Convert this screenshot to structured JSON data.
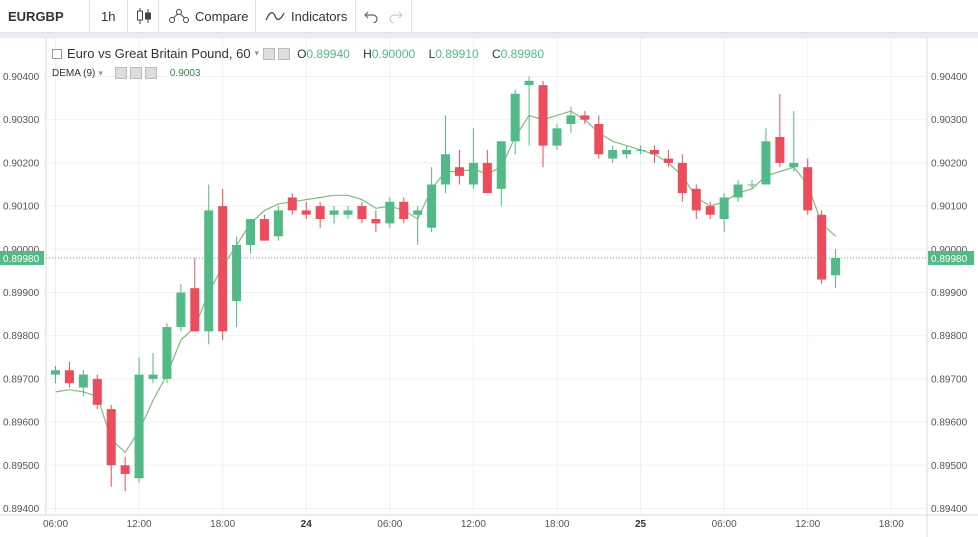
{
  "toolbar": {
    "symbol": "EURGBP",
    "interval": "1h",
    "compare_label": "Compare",
    "indicators_label": "Indicators"
  },
  "legend": {
    "title": "Euro vs Great Britain Pound, 60",
    "o_label": "O",
    "o_value": "0.89940",
    "h_label": "H",
    "h_value": "0.90000",
    "l_label": "L",
    "l_value": "0.89910",
    "c_label": "C",
    "c_value": "0.89980",
    "indicator_name": "DEMA (9)",
    "indicator_value": "0.9003"
  },
  "price_tags": {
    "left": "0.89980",
    "right": "0.89980"
  },
  "colors": {
    "up": "#53b987",
    "down": "#eb4d5c",
    "dema": "#7ac17a",
    "grid": "#eef0f3",
    "axis_text": "#555555"
  },
  "chart_data": {
    "type": "candlestick",
    "title": "Euro vs Great Britain Pound, 60",
    "ylim": [
      0.8938,
      0.9047
    ],
    "y_ticks": [
      "0.89400",
      "0.89500",
      "0.89600",
      "0.89700",
      "0.89800",
      "0.89900",
      "0.90000",
      "0.90100",
      "0.90200",
      "0.90300",
      "0.90400"
    ],
    "x_ticks": [
      {
        "label": "06:00",
        "index": 0
      },
      {
        "label": "12:00",
        "index": 6
      },
      {
        "label": "18:00",
        "index": 12
      },
      {
        "label": "24",
        "index": 18
      },
      {
        "label": "06:00",
        "index": 24
      },
      {
        "label": "12:00",
        "index": 30
      },
      {
        "label": "18:00",
        "index": 36
      },
      {
        "label": "25",
        "index": 42
      },
      {
        "label": "06:00",
        "index": 48
      },
      {
        "label": "12:00",
        "index": 54
      },
      {
        "label": "18:00",
        "index": 60
      }
    ],
    "last_price": 0.8998,
    "candles": [
      {
        "o": 0.8971,
        "h": 0.8973,
        "l": 0.8969,
        "c": 0.8972
      },
      {
        "o": 0.8972,
        "h": 0.8974,
        "l": 0.8968,
        "c": 0.8969
      },
      {
        "o": 0.8968,
        "h": 0.8972,
        "l": 0.8966,
        "c": 0.8971
      },
      {
        "o": 0.897,
        "h": 0.8971,
        "l": 0.8963,
        "c": 0.8964
      },
      {
        "o": 0.8963,
        "h": 0.8964,
        "l": 0.8945,
        "c": 0.895
      },
      {
        "o": 0.895,
        "h": 0.8952,
        "l": 0.8944,
        "c": 0.8948
      },
      {
        "o": 0.8947,
        "h": 0.8975,
        "l": 0.8946,
        "c": 0.8971
      },
      {
        "o": 0.897,
        "h": 0.8976,
        "l": 0.8969,
        "c": 0.8971
      },
      {
        "o": 0.897,
        "h": 0.8983,
        "l": 0.8969,
        "c": 0.8982
      },
      {
        "o": 0.8982,
        "h": 0.8992,
        "l": 0.8981,
        "c": 0.899
      },
      {
        "o": 0.8991,
        "h": 0.8998,
        "l": 0.8981,
        "c": 0.8981
      },
      {
        "o": 0.8981,
        "h": 0.9015,
        "l": 0.8978,
        "c": 0.9009
      },
      {
        "o": 0.901,
        "h": 0.9014,
        "l": 0.8979,
        "c": 0.8981
      },
      {
        "o": 0.8988,
        "h": 0.9003,
        "l": 0.8982,
        "c": 0.9001
      },
      {
        "o": 0.9001,
        "h": 0.9007,
        "l": 0.8999,
        "c": 0.9007
      },
      {
        "o": 0.9007,
        "h": 0.9008,
        "l": 0.9002,
        "c": 0.9002
      },
      {
        "o": 0.9003,
        "h": 0.901,
        "l": 0.9002,
        "c": 0.9009
      },
      {
        "o": 0.9012,
        "h": 0.9013,
        "l": 0.9008,
        "c": 0.9009
      },
      {
        "o": 0.9009,
        "h": 0.9011,
        "l": 0.9007,
        "c": 0.9008
      },
      {
        "o": 0.901,
        "h": 0.9011,
        "l": 0.9005,
        "c": 0.9007
      },
      {
        "o": 0.9008,
        "h": 0.901,
        "l": 0.9006,
        "c": 0.9009
      },
      {
        "o": 0.9008,
        "h": 0.901,
        "l": 0.9007,
        "c": 0.9009
      },
      {
        "o": 0.901,
        "h": 0.9011,
        "l": 0.9006,
        "c": 0.9007
      },
      {
        "o": 0.9007,
        "h": 0.9009,
        "l": 0.9004,
        "c": 0.9006
      },
      {
        "o": 0.9006,
        "h": 0.9012,
        "l": 0.9005,
        "c": 0.9011
      },
      {
        "o": 0.9011,
        "h": 0.9012,
        "l": 0.9006,
        "c": 0.9007
      },
      {
        "o": 0.9008,
        "h": 0.901,
        "l": 0.9001,
        "c": 0.9009
      },
      {
        "o": 0.9005,
        "h": 0.9019,
        "l": 0.9004,
        "c": 0.9015
      },
      {
        "o": 0.9015,
        "h": 0.9031,
        "l": 0.9013,
        "c": 0.9022
      },
      {
        "o": 0.9019,
        "h": 0.9023,
        "l": 0.9015,
        "c": 0.9017
      },
      {
        "o": 0.9015,
        "h": 0.9028,
        "l": 0.9014,
        "c": 0.902
      },
      {
        "o": 0.902,
        "h": 0.9023,
        "l": 0.9013,
        "c": 0.9013
      },
      {
        "o": 0.9014,
        "h": 0.9025,
        "l": 0.901,
        "c": 0.9025
      },
      {
        "o": 0.9025,
        "h": 0.9037,
        "l": 0.9022,
        "c": 0.9036
      },
      {
        "o": 0.9038,
        "h": 0.904,
        "l": 0.9024,
        "c": 0.9039
      },
      {
        "o": 0.9038,
        "h": 0.9039,
        "l": 0.9019,
        "c": 0.9024
      },
      {
        "o": 0.9024,
        "h": 0.9029,
        "l": 0.9023,
        "c": 0.9028
      },
      {
        "o": 0.9029,
        "h": 0.9033,
        "l": 0.9027,
        "c": 0.9031
      },
      {
        "o": 0.9031,
        "h": 0.9032,
        "l": 0.9029,
        "c": 0.903
      },
      {
        "o": 0.9029,
        "h": 0.9031,
        "l": 0.9021,
        "c": 0.9022
      },
      {
        "o": 0.9021,
        "h": 0.9024,
        "l": 0.902,
        "c": 0.9023
      },
      {
        "o": 0.9022,
        "h": 0.9024,
        "l": 0.9021,
        "c": 0.9023
      },
      {
        "o": 0.9023,
        "h": 0.9024,
        "l": 0.9022,
        "c": 0.9023
      },
      {
        "o": 0.9023,
        "h": 0.9024,
        "l": 0.902,
        "c": 0.9022
      },
      {
        "o": 0.9021,
        "h": 0.9023,
        "l": 0.9019,
        "c": 0.902
      },
      {
        "o": 0.902,
        "h": 0.9022,
        "l": 0.9011,
        "c": 0.9013
      },
      {
        "o": 0.9014,
        "h": 0.9015,
        "l": 0.9007,
        "c": 0.9009
      },
      {
        "o": 0.901,
        "h": 0.9011,
        "l": 0.9007,
        "c": 0.9008
      },
      {
        "o": 0.9007,
        "h": 0.9013,
        "l": 0.9004,
        "c": 0.9012
      },
      {
        "o": 0.9012,
        "h": 0.9016,
        "l": 0.9011,
        "c": 0.9015
      },
      {
        "o": 0.9015,
        "h": 0.9016,
        "l": 0.9014,
        "c": 0.9015
      },
      {
        "o": 0.9015,
        "h": 0.9028,
        "l": 0.9015,
        "c": 0.9025
      },
      {
        "o": 0.9026,
        "h": 0.9036,
        "l": 0.9019,
        "c": 0.902
      },
      {
        "o": 0.9019,
        "h": 0.9032,
        "l": 0.9018,
        "c": 0.902
      },
      {
        "o": 0.9019,
        "h": 0.9021,
        "l": 0.9008,
        "c": 0.9009
      },
      {
        "o": 0.9008,
        "h": 0.9009,
        "l": 0.8992,
        "c": 0.8993
      },
      {
        "o": 0.8994,
        "h": 0.9,
        "l": 0.8991,
        "c": 0.8998
      }
    ],
    "dema": [
      0.8967,
      0.89675,
      0.8967,
      0.8966,
      0.8956,
      0.8953,
      0.8958,
      0.8965,
      0.8971,
      0.8979,
      0.8982,
      0.899,
      0.8996,
      0.9001,
      0.9006,
      0.9009,
      0.90105,
      0.9011,
      0.90115,
      0.9012,
      0.90125,
      0.90125,
      0.90115,
      0.90095,
      0.901,
      0.9009,
      0.9007,
      0.9014,
      0.9018,
      0.9018,
      0.90185,
      0.90175,
      0.9019,
      0.9026,
      0.9031,
      0.903,
      0.9031,
      0.9032,
      0.903,
      0.9027,
      0.9025,
      0.9024,
      0.9023,
      0.9022,
      0.902,
      0.9017,
      0.9012,
      0.901,
      0.9011,
      0.9013,
      0.9014,
      0.9017,
      0.9018,
      0.9019,
      0.9015,
      0.9006,
      0.9003
    ]
  }
}
